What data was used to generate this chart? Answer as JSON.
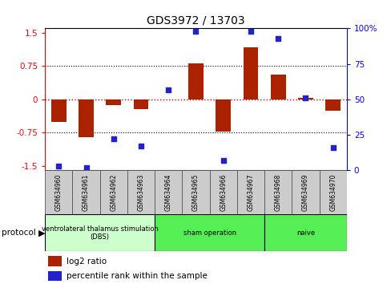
{
  "title": "GDS3972 / 13703",
  "samples": [
    "GSM634960",
    "GSM634961",
    "GSM634962",
    "GSM634963",
    "GSM634964",
    "GSM634965",
    "GSM634966",
    "GSM634967",
    "GSM634968",
    "GSM634969",
    "GSM634970"
  ],
  "log2_ratio": [
    -0.5,
    -0.85,
    -0.13,
    -0.22,
    0.0,
    0.82,
    -0.72,
    1.18,
    0.55,
    0.03,
    -0.25
  ],
  "percentile_rank": [
    3,
    2,
    22,
    17,
    57,
    98,
    7,
    98,
    93,
    51,
    16
  ],
  "ylim_left": [
    -1.6,
    1.6
  ],
  "ylim_right": [
    -4.26666,
    106.6666
  ],
  "yticks_left": [
    -1.5,
    -0.75,
    0,
    0.75,
    1.5
  ],
  "yticks_right": [
    0,
    25,
    50,
    75,
    100
  ],
  "hlines_dotted": [
    -0.75,
    0.75
  ],
  "zero_line_color": "#cc0000",
  "bar_color": "#aa2200",
  "dot_color": "#2222cc",
  "group_dbs_color": "#ccffcc",
  "group_sham_color": "#55ee55",
  "group_naive_color": "#55ee55",
  "legend_bar_label": "log2 ratio",
  "legend_dot_label": "percentile rank within the sample",
  "protocol_label": "protocol"
}
